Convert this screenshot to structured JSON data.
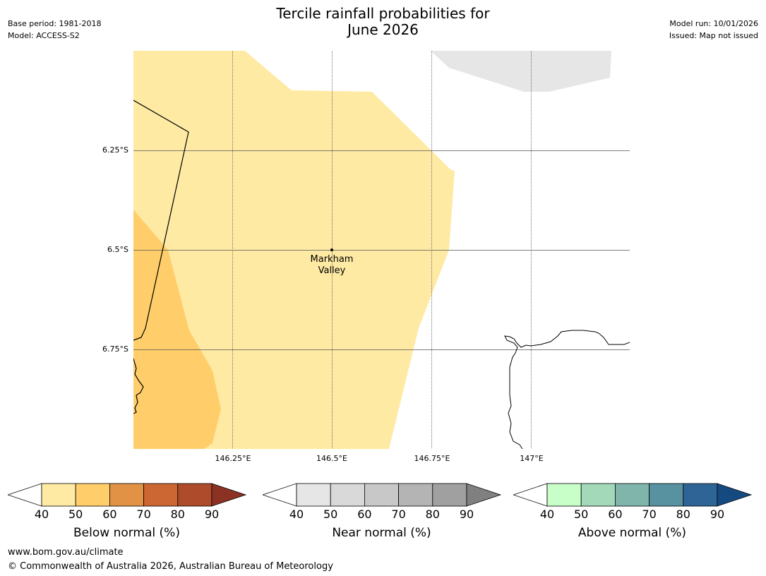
{
  "meta": {
    "base_period": "Base period: 1981-2018",
    "model": "Model: ACCESS-S2",
    "model_run": "Model run: 10/01/2026",
    "issued": "Issued: Map not issued"
  },
  "title": {
    "line1": "Tercile rainfall probabilities for",
    "line2": "June 2026"
  },
  "map": {
    "lat_labels": [
      "6.25°S",
      "6.5°S",
      "6.75°S"
    ],
    "lon_labels": [
      "146.25°E",
      "146.5°E",
      "146.75°E",
      "147°E"
    ],
    "place": {
      "line1": "Markham",
      "line2": "Valley"
    },
    "colors": {
      "below_40_50": "#ffeaa3",
      "below_50_60": "#ffce6b",
      "near_40_50": "#e6e6e6"
    }
  },
  "colorbars": [
    {
      "label": "Below normal (%)",
      "ticks": [
        "40",
        "50",
        "60",
        "70",
        "80",
        "90"
      ],
      "colors": [
        "#ffeaa3",
        "#ffce6b",
        "#e29244",
        "#cc6633",
        "#ad4b2a",
        "#8c3224"
      ]
    },
    {
      "label": "Near normal (%)",
      "ticks": [
        "40",
        "50",
        "60",
        "70",
        "80",
        "90"
      ],
      "colors": [
        "#e6e6e6",
        "#d9d9d9",
        "#c8c8c8",
        "#b4b4b4",
        "#a0a0a0",
        "#808080"
      ]
    },
    {
      "label": "Above normal (%)",
      "ticks": [
        "40",
        "50",
        "60",
        "70",
        "80",
        "90"
      ],
      "colors": [
        "#c8ffc8",
        "#a3d9b8",
        "#80b5ac",
        "#5891a0",
        "#2e6496",
        "#154a80"
      ]
    }
  ],
  "footer": {
    "url": "www.bom.gov.au/climate",
    "copyright": "© Commonwealth of Australia 2026, Australian Bureau of Meteorology"
  }
}
